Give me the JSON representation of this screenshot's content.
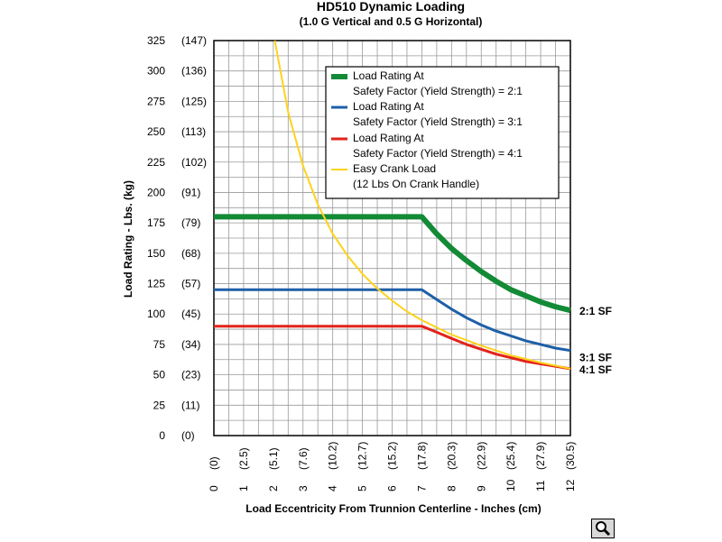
{
  "chart_data": {
    "type": "line",
    "title": "HD510 Dynamic Loading",
    "subtitle": "(1.0 G Vertical and 0.5 G Horizontal)",
    "xlabel": "Load Eccentricity From Trunnion Centerline - Inches (cm)",
    "ylabel": "Load Rating - Lbs. (kg)",
    "xlim": [
      0,
      12
    ],
    "ylim": [
      0,
      325
    ],
    "x_ticks": [
      0,
      1,
      2,
      3,
      4,
      5,
      6,
      7,
      8,
      9,
      10,
      11,
      12
    ],
    "x_tick_labels": [
      "0",
      "1",
      "2",
      "3",
      "4",
      "5",
      "6",
      "7",
      "8",
      "9",
      "10",
      "11",
      "12"
    ],
    "x_tick_labels_cm": [
      "(0)",
      "(2.5)",
      "(5.1)",
      "(7.6)",
      "(10.2)",
      "(12.7)",
      "(15.2)",
      "(17.8)",
      "(20.3)",
      "(22.9)",
      "(25.4)",
      "(27.9)",
      "(30.5)"
    ],
    "y_ticks": [
      0,
      25,
      50,
      75,
      100,
      125,
      150,
      175,
      200,
      225,
      250,
      275,
      300,
      325
    ],
    "y_tick_labels": [
      "0",
      "25",
      "50",
      "75",
      "100",
      "125",
      "150",
      "175",
      "200",
      "225",
      "250",
      "275",
      "300",
      "325"
    ],
    "y_tick_labels_kg": [
      "(0)",
      "(11)",
      "(23)",
      "(34)",
      "(45)",
      "(57)",
      "(68)",
      "(79)",
      "(91)",
      "(102)",
      "(113)",
      "(125)",
      "(136)",
      "(147)"
    ],
    "grid": true,
    "legend_position": "top-right",
    "series": [
      {
        "name": "Load Rating At Safety Factor (Yield Strength) = 2:1",
        "legend_lines": [
          "Load Rating At",
          "Safety Factor (Yield Strength) = 2:1"
        ],
        "color": "#138a36",
        "end_label": "2:1 SF",
        "x": [
          0,
          7,
          7.5,
          8,
          8.5,
          9,
          9.5,
          10,
          10.5,
          11,
          11.5,
          12
        ],
        "y": [
          180,
          180,
          166,
          154,
          144,
          135,
          127,
          120,
          115,
          110,
          106,
          103
        ]
      },
      {
        "name": "Load Rating At Safety Factor (Yield Strength) = 3:1",
        "legend_lines": [
          "Load Rating At",
          "Safety Factor (Yield Strength) = 3:1"
        ],
        "color": "#1e5fa8",
        "end_label": "3:1 SF",
        "x": [
          0,
          7,
          7.5,
          8,
          8.5,
          9,
          9.5,
          10,
          10.5,
          11,
          11.5,
          12
        ],
        "y": [
          120,
          120,
          112,
          104,
          97,
          91,
          86,
          82,
          78,
          75,
          72,
          70
        ]
      },
      {
        "name": "Load Rating At Safety Factor (Yield Strength) = 4:1",
        "legend_lines": [
          "Load Rating At",
          "Safety Factor (Yield Strength) = 4:1"
        ],
        "color": "#e2231a",
        "end_label": "4:1 SF",
        "x": [
          0,
          7,
          7.5,
          8,
          8.5,
          9,
          9.5,
          10,
          10.5,
          11,
          11.5,
          12
        ],
        "y": [
          90,
          90,
          85,
          80,
          75,
          71,
          67,
          64,
          61,
          59,
          57,
          55
        ]
      },
      {
        "name": "Easy Crank Load (12 Lbs On Crank Handle)",
        "legend_lines": [
          "Easy Crank Load",
          "(12 Lbs On Crank Handle)"
        ],
        "color": "#ffd21a",
        "end_label": "",
        "x": [
          2.05,
          2.5,
          3,
          3.5,
          4,
          4.5,
          5,
          5.5,
          6,
          6.5,
          7,
          7.5,
          8,
          9,
          10,
          11,
          12
        ],
        "y": [
          325,
          266,
          222,
          190,
          166,
          148,
          133,
          121,
          111,
          102,
          95,
          89,
          83,
          74,
          66,
          60,
          55
        ]
      }
    ]
  },
  "zoom_button": {
    "icon": "magnifier-icon"
  }
}
